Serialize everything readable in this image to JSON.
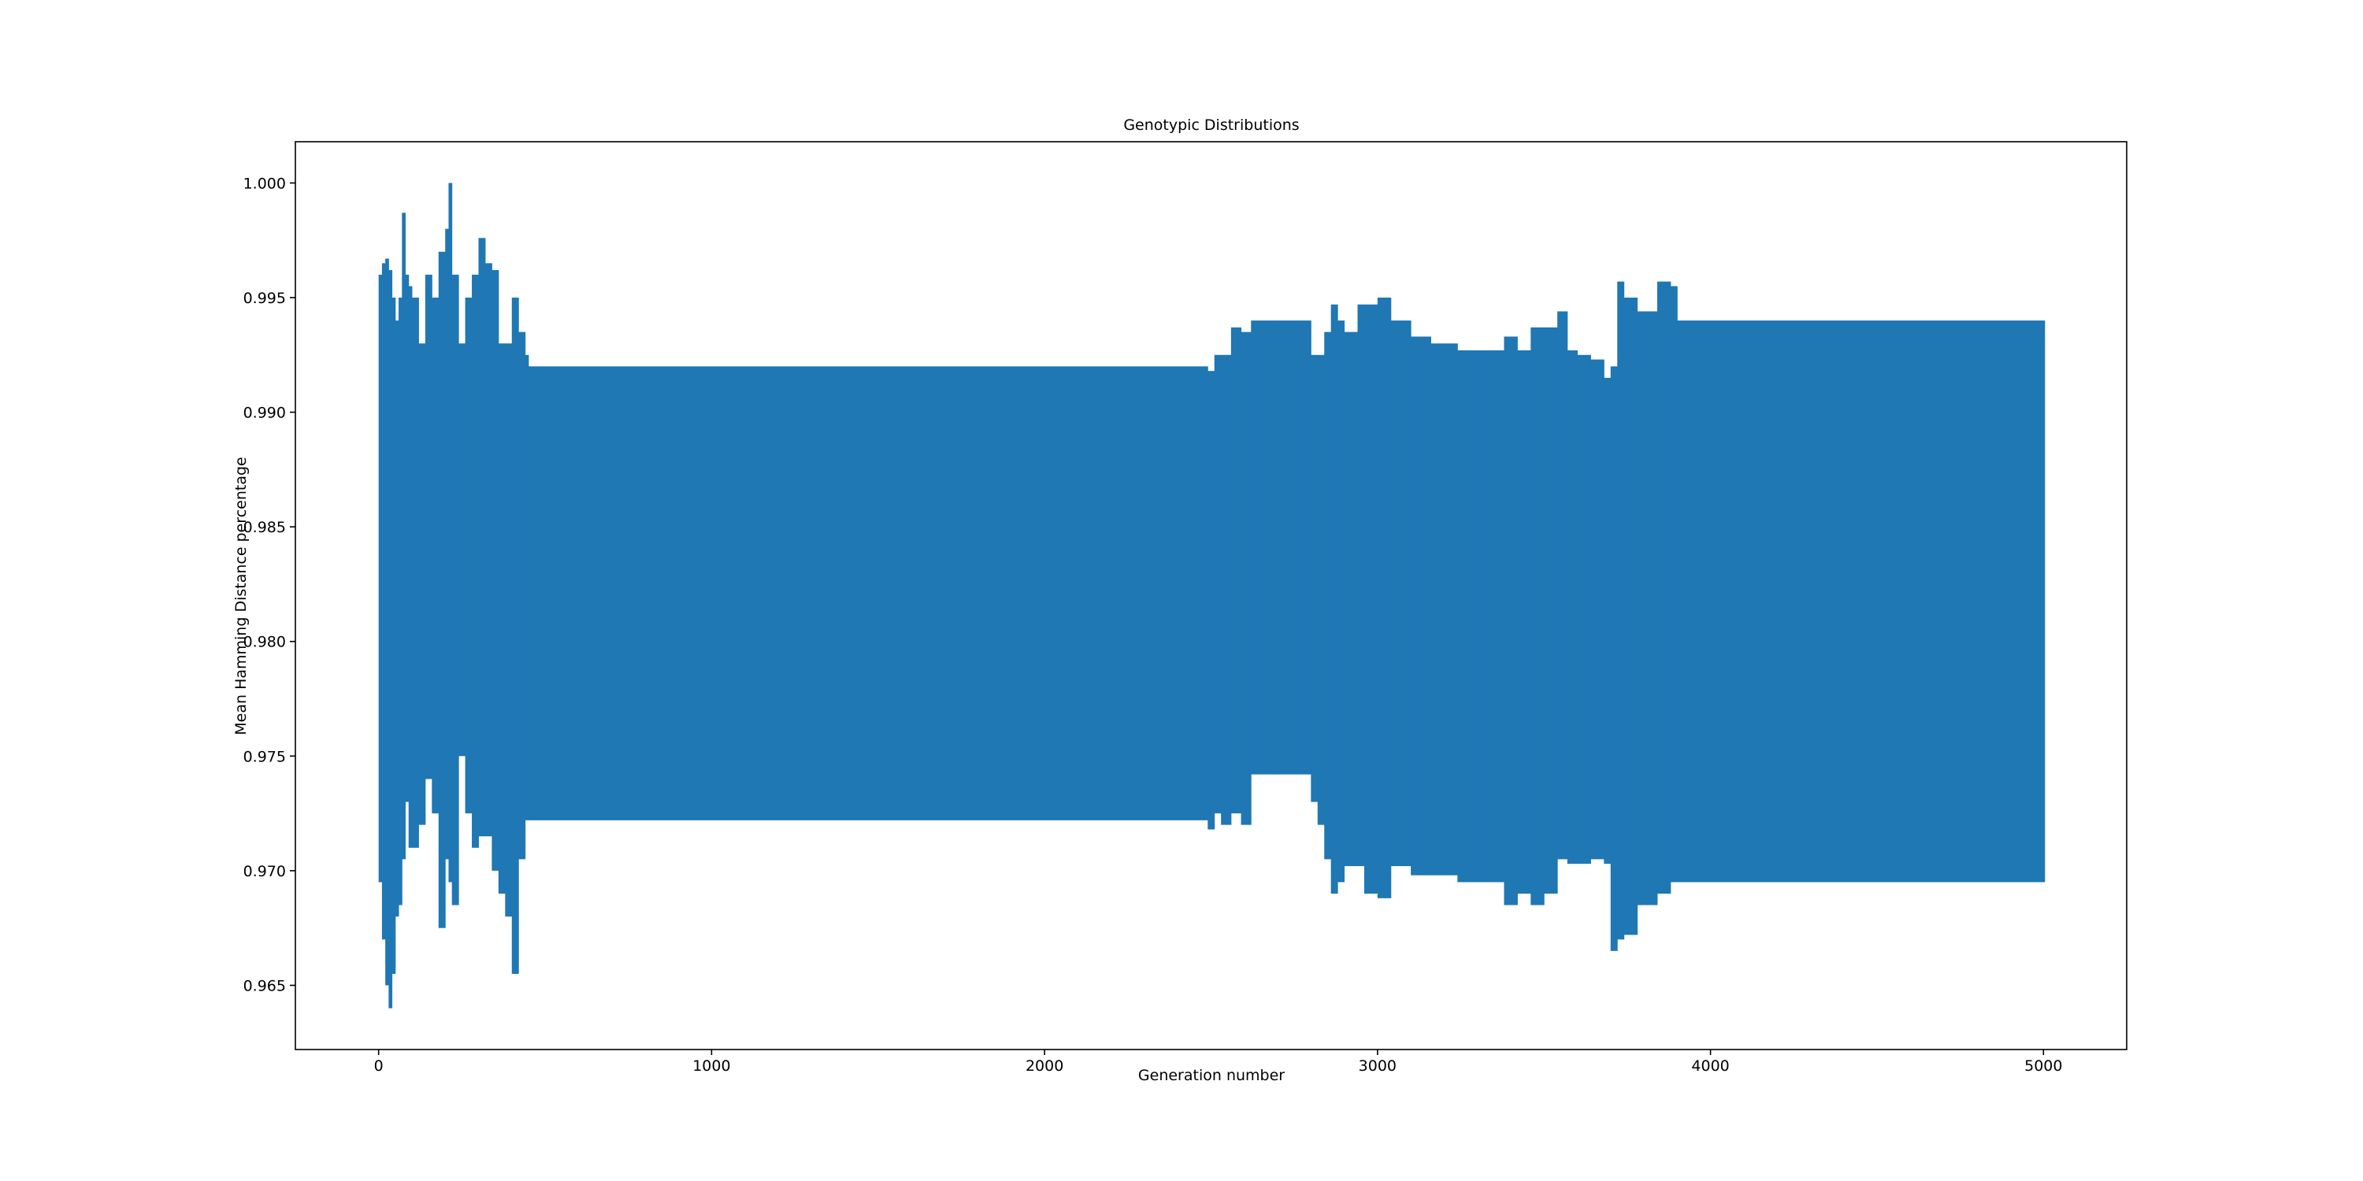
{
  "chart_data": {
    "type": "band",
    "title": "Genotypic Distributions",
    "x_label": "Generation number",
    "y_label": "Mean Hamming Distance percentage",
    "color": "#1f77b4",
    "x": [
      0,
      10,
      20,
      30,
      40,
      50,
      60,
      70,
      80,
      90,
      100,
      120,
      140,
      160,
      180,
      200,
      210,
      220,
      240,
      260,
      280,
      300,
      320,
      340,
      360,
      380,
      400,
      420,
      440,
      450,
      2490,
      2510,
      2530,
      2560,
      2590,
      2620,
      2700,
      2760,
      2800,
      2820,
      2840,
      2860,
      2880,
      2900,
      2940,
      2960,
      3000,
      3040,
      3100,
      3160,
      3240,
      3330,
      3380,
      3420,
      3460,
      3500,
      3540,
      3570,
      3600,
      3640,
      3680,
      3700,
      3720,
      3740,
      3780,
      3840,
      3880,
      3900,
      5000
    ],
    "upper": [
      0.996,
      0.9965,
      0.9967,
      0.9962,
      0.995,
      0.994,
      0.995,
      0.9987,
      0.996,
      0.9955,
      0.995,
      0.993,
      0.996,
      0.995,
      0.997,
      0.998,
      1.0,
      0.996,
      0.993,
      0.995,
      0.996,
      0.9976,
      0.9965,
      0.9962,
      0.993,
      0.993,
      0.995,
      0.9935,
      0.9925,
      0.992,
      0.9918,
      0.9925,
      0.9925,
      0.9937,
      0.9935,
      0.994,
      0.994,
      0.994,
      0.9925,
      0.9925,
      0.9935,
      0.9947,
      0.994,
      0.9935,
      0.9947,
      0.9947,
      0.995,
      0.994,
      0.9933,
      0.993,
      0.9927,
      0.9927,
      0.9933,
      0.9927,
      0.9937,
      0.9937,
      0.9944,
      0.9927,
      0.9925,
      0.9923,
      0.9915,
      0.992,
      0.9957,
      0.995,
      0.9944,
      0.9957,
      0.9955,
      0.994,
      0.994
    ],
    "lower": [
      0.9695,
      0.967,
      0.965,
      0.964,
      0.9655,
      0.968,
      0.9685,
      0.9705,
      0.973,
      0.971,
      0.971,
      0.972,
      0.974,
      0.9725,
      0.9675,
      0.9705,
      0.9695,
      0.9685,
      0.975,
      0.9725,
      0.971,
      0.9715,
      0.9715,
      0.97,
      0.969,
      0.968,
      0.9655,
      0.9705,
      0.9722,
      0.9722,
      0.9718,
      0.9725,
      0.972,
      0.9725,
      0.972,
      0.9742,
      0.9742,
      0.9742,
      0.973,
      0.972,
      0.9705,
      0.969,
      0.9695,
      0.9702,
      0.9702,
      0.969,
      0.9688,
      0.9702,
      0.9698,
      0.9698,
      0.9695,
      0.9695,
      0.9685,
      0.969,
      0.9685,
      0.969,
      0.9705,
      0.9703,
      0.9703,
      0.9705,
      0.9703,
      0.9665,
      0.967,
      0.9672,
      0.9685,
      0.969,
      0.9695,
      0.9695,
      0.9695
    ],
    "xlim": [
      -250,
      5250
    ],
    "ylim": [
      0.9622,
      1.0018
    ],
    "xticks": [
      0,
      1000,
      2000,
      3000,
      4000,
      5000
    ],
    "yticks": [
      {
        "value": 0.965,
        "label": "0.965"
      },
      {
        "value": 0.97,
        "label": "0.970"
      },
      {
        "value": 0.975,
        "label": "0.975"
      },
      {
        "value": 0.98,
        "label": "0.980"
      },
      {
        "value": 0.985,
        "label": "0.985"
      },
      {
        "value": 0.99,
        "label": "0.990"
      },
      {
        "value": 0.995,
        "label": "0.995"
      },
      {
        "value": 1.0,
        "label": "1.000"
      }
    ]
  }
}
